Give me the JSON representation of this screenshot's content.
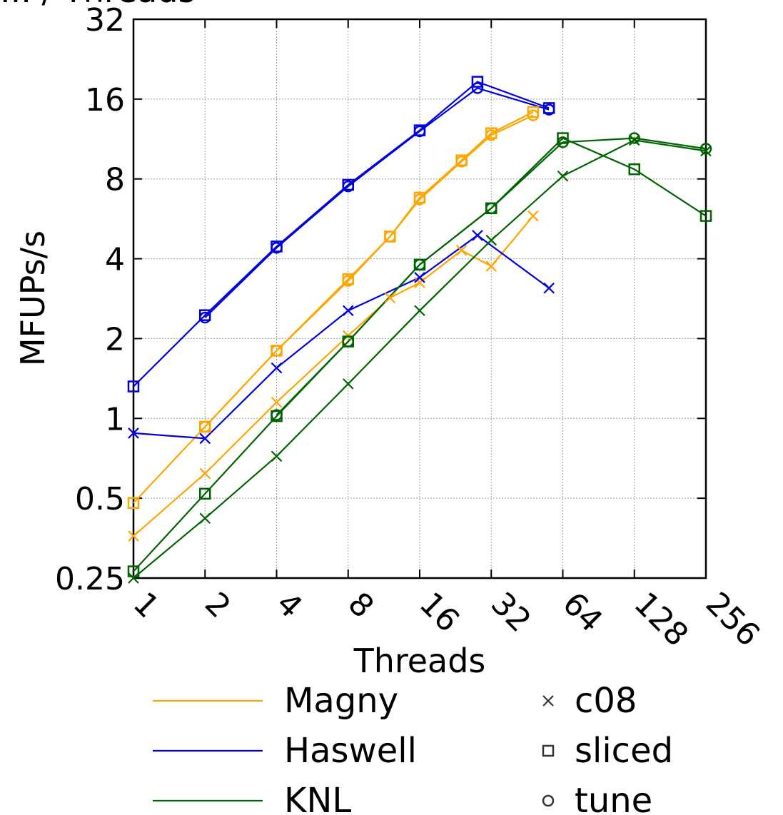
{
  "chart_data": {
    "type": "line",
    "title": "... / Threads",
    "xlabel": "Threads",
    "ylabel": "MFUPs/s",
    "x_scale": "log2",
    "y_scale": "log2",
    "xlim": [
      1,
      256
    ],
    "ylim": [
      0.25,
      32
    ],
    "x_ticks": [
      1,
      2,
      4,
      8,
      16,
      32,
      64,
      128,
      256
    ],
    "x_tick_labels": [
      "1",
      "2",
      "4",
      "8",
      "16",
      "32",
      "64",
      "128",
      "256"
    ],
    "y_ticks": [
      0.25,
      0.5,
      1,
      2,
      4,
      8,
      16,
      32
    ],
    "y_tick_labels": [
      "0.25",
      "0.5",
      "1",
      "2",
      "4",
      "8",
      "16",
      "32"
    ],
    "grid": true,
    "legend": {
      "placement": "bottom",
      "machines": [
        {
          "name": "Magny",
          "color": "#ffa500"
        },
        {
          "name": "Haswell",
          "color": "#0000dd"
        },
        {
          "name": "KNL",
          "color": "#006400"
        }
      ],
      "markers": [
        {
          "name": "c08",
          "marker": "x"
        },
        {
          "name": "sliced",
          "marker": "square"
        },
        {
          "name": "tune",
          "marker": "circle"
        }
      ]
    },
    "series": [
      {
        "machine": "Magny",
        "marker": "x",
        "color": "#ffa500",
        "x": [
          1,
          2,
          4,
          8,
          12,
          16,
          24,
          32,
          48
        ],
        "y": [
          0.36,
          0.62,
          1.15,
          2.05,
          2.85,
          3.25,
          4.3,
          3.75,
          5.8
        ]
      },
      {
        "machine": "Magny",
        "marker": "square",
        "color": "#ffa500",
        "x": [
          1,
          2,
          4,
          8,
          12,
          16,
          24,
          32,
          48
        ],
        "y": [
          0.48,
          0.93,
          1.8,
          3.35,
          4.85,
          6.8,
          9.4,
          11.9,
          14.3
        ]
      },
      {
        "machine": "Magny",
        "marker": "circle",
        "color": "#ffa500",
        "x": [
          2,
          4,
          8,
          12,
          16,
          24,
          32,
          48
        ],
        "y": [
          0.93,
          1.8,
          3.3,
          4.85,
          6.7,
          9.3,
          11.7,
          13.9
        ]
      },
      {
        "machine": "Haswell",
        "marker": "x",
        "color": "#0000dd",
        "x": [
          1,
          2,
          4,
          8,
          16,
          28,
          56
        ],
        "y": [
          0.88,
          0.84,
          1.55,
          2.55,
          3.4,
          4.9,
          3.1
        ]
      },
      {
        "machine": "Haswell",
        "marker": "square",
        "color": "#0000dd",
        "x": [
          1,
          2,
          4,
          8,
          16,
          28,
          56
        ],
        "y": [
          1.32,
          2.45,
          4.45,
          7.6,
          12.2,
          18.6,
          14.8
        ]
      },
      {
        "machine": "Haswell",
        "marker": "circle",
        "color": "#0000dd",
        "x": [
          2,
          4,
          8,
          16,
          28,
          56
        ],
        "y": [
          2.4,
          4.4,
          7.5,
          12.1,
          17.6,
          14.6
        ]
      },
      {
        "machine": "KNL",
        "marker": "x",
        "color": "#006400",
        "x": [
          1,
          2,
          4,
          8,
          16,
          32,
          64,
          128,
          256
        ],
        "y": [
          0.25,
          0.42,
          0.72,
          1.35,
          2.55,
          4.7,
          8.2,
          11.2,
          10.2
        ]
      },
      {
        "machine": "KNL",
        "marker": "square",
        "color": "#006400",
        "x": [
          1,
          2,
          4,
          8,
          16,
          32,
          64,
          128,
          256
        ],
        "y": [
          0.265,
          0.52,
          1.02,
          1.95,
          3.8,
          6.2,
          11.4,
          8.7,
          5.8
        ]
      },
      {
        "machine": "KNL",
        "marker": "circle",
        "color": "#006400",
        "x": [
          4,
          8,
          16,
          32,
          64,
          128,
          256
        ],
        "y": [
          1.03,
          1.95,
          3.8,
          6.2,
          11.0,
          11.4,
          10.4
        ]
      }
    ]
  }
}
